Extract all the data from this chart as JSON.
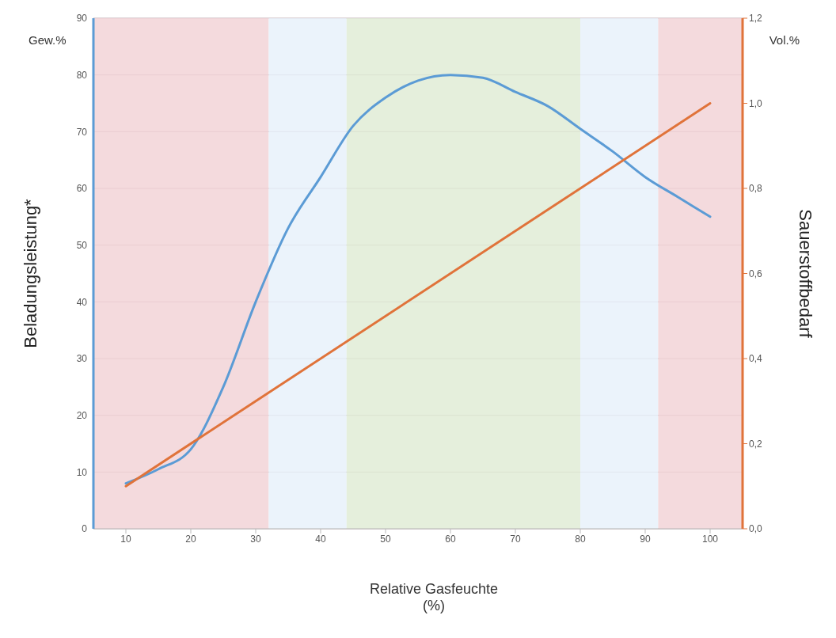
{
  "chart_data": {
    "type": "line",
    "xlabel": "Relative Gasfeuchte\n(%)",
    "ylabel": "Beladungsleistung*",
    "y2label": "Sauerstoffbedarf",
    "annotations": [
      "Gew.%",
      "Vol.%"
    ],
    "xlim": [
      5,
      105
    ],
    "xticks": [
      10,
      20,
      30,
      40,
      50,
      60,
      70,
      80,
      90,
      100
    ],
    "ylim": [
      0,
      90
    ],
    "yticks": [
      0,
      10,
      20,
      30,
      40,
      50,
      60,
      70,
      80,
      90
    ],
    "y2lim": [
      0,
      1.2
    ],
    "y2ticks": [
      {
        "value": 0,
        "label": "0,0"
      },
      {
        "value": 0.2,
        "label": "0,2"
      },
      {
        "value": 0.4,
        "label": "0,4"
      },
      {
        "value": 0.6,
        "label": "0,6"
      },
      {
        "value": 0.8,
        "label": "0,8"
      },
      {
        "value": 1,
        "label": "1,0"
      },
      {
        "value": 1.2,
        "label": "1,2"
      }
    ],
    "grid": "y",
    "legend": false,
    "marker": "none",
    "line_style": "solid",
    "bands": [
      {
        "axis": "x",
        "from": 5,
        "to": 32,
        "color": "#f2d4d7"
      },
      {
        "axis": "x",
        "from": 32,
        "to": 44,
        "color": "#e8f1fa"
      },
      {
        "axis": "x",
        "from": 44,
        "to": 80,
        "color": "#e0ecd6"
      },
      {
        "axis": "x",
        "from": 80,
        "to": 92,
        "color": "#e8f1fa"
      },
      {
        "axis": "x",
        "from": 92,
        "to": 105,
        "color": "#f2d4d7"
      }
    ],
    "series": [
      {
        "color": "#5b9bd5",
        "x": [
          10,
          15,
          20,
          25,
          30,
          35,
          40,
          45,
          50,
          55,
          60,
          65,
          70,
          75,
          80,
          85,
          90,
          95,
          100
        ],
        "values": [
          8,
          10.5,
          14,
          25,
          40,
          53,
          62,
          71,
          76,
          79,
          80,
          79.5,
          77,
          74.5,
          70.5,
          66.5,
          62,
          58.5,
          55
        ]
      },
      {
        "color": "#e0733a",
        "axis": "y2",
        "x": [
          10,
          100
        ],
        "values": [
          0.1,
          1.0
        ]
      }
    ]
  }
}
